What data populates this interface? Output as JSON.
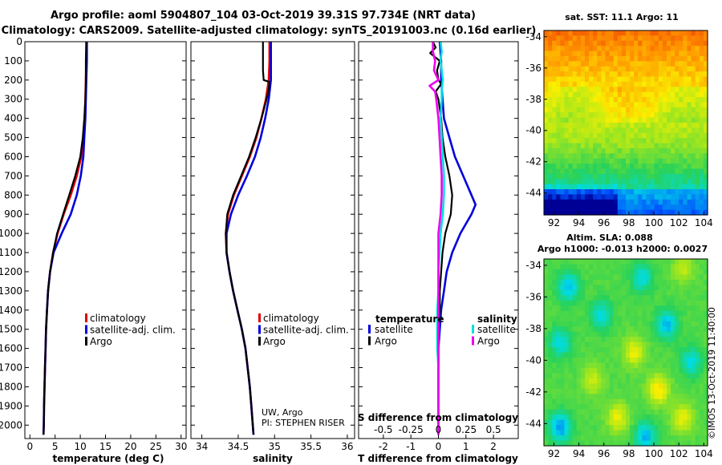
{
  "header": {
    "title_line1": "Argo profile: aoml 5904807_104 03-Oct-2019 39.31S 97.734E (NRT data)",
    "title_line2": "Climatology: CARS2009. Satellite-adjusted climatology: synTS_20191003.nc (0.16d earlier)"
  },
  "colors": {
    "climatology": "#e00000",
    "satellite": "#0000dd",
    "argo": "#000000",
    "satellite_salinity": "#00e0e0",
    "argo_salinity": "#ee00ee"
  },
  "chart_data": [
    {
      "type": "line",
      "id": "temperature",
      "xlabel": "temperature (deg C)",
      "ylabel": "depth",
      "xlim": [
        -1,
        31
      ],
      "ylim": [
        2070,
        0
      ],
      "xticks": [
        0,
        5,
        10,
        15,
        20,
        25,
        30
      ],
      "yticks": [
        0,
        100,
        200,
        300,
        400,
        500,
        600,
        700,
        800,
        900,
        1000,
        1100,
        1200,
        1300,
        1400,
        1500,
        1600,
        1700,
        1800,
        1900,
        2000
      ],
      "legend": [
        "climatology",
        "satellite-adj. clim.",
        "Argo"
      ],
      "series": [
        {
          "name": "climatology",
          "depth": [
            0,
            100,
            200,
            300,
            400,
            500,
            600,
            700,
            800,
            900,
            1000,
            1100,
            1200,
            1300,
            1400,
            1500,
            1600,
            1700,
            1800,
            1900,
            2000,
            2050
          ],
          "values": [
            11.2,
            11.2,
            11.1,
            11.0,
            10.9,
            10.7,
            10.2,
            9.3,
            8.1,
            6.7,
            5.5,
            4.6,
            4.0,
            3.6,
            3.4,
            3.2,
            3.1,
            3.0,
            2.9,
            2.8,
            2.75,
            2.7
          ]
        },
        {
          "name": "satellite-adj. clim.",
          "depth": [
            0,
            100,
            200,
            300,
            400,
            500,
            600,
            700,
            800,
            900,
            1000,
            1100,
            1200,
            1300,
            1400,
            1500,
            1600,
            1700,
            1800,
            1900,
            2000,
            2050
          ],
          "values": [
            11.3,
            11.3,
            11.2,
            11.1,
            11.0,
            10.8,
            10.6,
            10.1,
            9.3,
            8.1,
            6.3,
            4.7,
            4.0,
            3.6,
            3.4,
            3.2,
            3.1,
            3.0,
            2.9,
            2.8,
            2.75,
            2.7
          ]
        },
        {
          "name": "Argo",
          "depth": [
            0,
            100,
            200,
            300,
            400,
            500,
            600,
            700,
            800,
            900,
            1000,
            1100,
            1200,
            1300,
            1400,
            1500,
            1600,
            1700,
            1800,
            1900,
            2000,
            2050
          ],
          "values": [
            11.2,
            11.1,
            11.1,
            11.0,
            10.8,
            10.5,
            10.0,
            9.0,
            7.8,
            6.6,
            5.4,
            4.6,
            4.0,
            3.6,
            3.4,
            3.2,
            3.1,
            3.0,
            2.9,
            2.8,
            2.75,
            2.7
          ]
        }
      ]
    },
    {
      "type": "line",
      "id": "salinity",
      "xlabel": "salinity",
      "ylabel": "depth",
      "xlim": [
        33.85,
        36.1
      ],
      "ylim": [
        2070,
        0
      ],
      "xticks": [
        34,
        34.5,
        35,
        35.5,
        36
      ],
      "xticklabels": [
        "34",
        "34.5",
        "35",
        "35.5",
        "36"
      ],
      "legend": [
        "climatology",
        "satellite-adj. clim.",
        "Argo"
      ],
      "annotation_line1": "UW, Argo",
      "annotation_line2": "PI: STEPHEN RISER",
      "series": [
        {
          "name": "climatology",
          "depth": [
            0,
            100,
            200,
            300,
            400,
            500,
            600,
            700,
            800,
            900,
            1000,
            1100,
            1200,
            1300,
            1400,
            1500,
            1600,
            1700,
            1800,
            1900,
            2000,
            2050
          ],
          "values": [
            34.93,
            34.93,
            34.92,
            34.88,
            34.82,
            34.75,
            34.66,
            34.55,
            34.44,
            34.36,
            34.33,
            34.34,
            34.38,
            34.43,
            34.49,
            34.55,
            34.6,
            34.63,
            34.66,
            34.68,
            34.7,
            34.71
          ]
        },
        {
          "name": "satellite-adj. clim.",
          "depth": [
            0,
            100,
            200,
            300,
            400,
            500,
            600,
            700,
            800,
            900,
            1000,
            1100,
            1200,
            1300,
            1400,
            1500,
            1600,
            1700,
            1800,
            1900,
            2000,
            2050
          ],
          "values": [
            34.95,
            34.95,
            34.95,
            34.92,
            34.87,
            34.81,
            34.73,
            34.62,
            34.5,
            34.4,
            34.34,
            34.34,
            34.38,
            34.43,
            34.49,
            34.55,
            34.6,
            34.63,
            34.66,
            34.68,
            34.7,
            34.71
          ]
        },
        {
          "name": "Argo",
          "depth": [
            0,
            50,
            100,
            150,
            200,
            210,
            250,
            300,
            400,
            500,
            600,
            700,
            800,
            900,
            1000,
            1100,
            1200,
            1300,
            1400,
            1500,
            1600,
            1700,
            1800,
            1900,
            2000,
            2050
          ],
          "values": [
            34.84,
            34.84,
            34.84,
            34.84,
            34.85,
            34.93,
            34.92,
            34.89,
            34.82,
            34.74,
            34.65,
            34.54,
            34.43,
            34.35,
            34.33,
            34.34,
            34.38,
            34.43,
            34.49,
            34.55,
            34.6,
            34.63,
            34.66,
            34.68,
            34.7,
            34.71
          ]
        }
      ]
    },
    {
      "type": "line",
      "id": "difference",
      "xlabel_bottom": "T difference from climatology",
      "xlabel_top": "S difference from climatology",
      "xlim": [
        -2.9,
        2.9
      ],
      "ylim": [
        2070,
        0
      ],
      "xticks": [
        -2,
        -1,
        0,
        1,
        2
      ],
      "xticklabels_top": [
        "-0.5",
        "-0.25",
        "0",
        "0.25",
        "0.5"
      ],
      "legend_left_title": "temperature",
      "legend_left": [
        "satellite",
        "Argo"
      ],
      "legend_right_title": "salinity",
      "legend_right": [
        "satellite",
        "Argo"
      ],
      "series": [
        {
          "name": "T satellite",
          "depth": [
            0,
            100,
            200,
            300,
            400,
            500,
            600,
            700,
            800,
            850,
            900,
            1000,
            1100,
            1200,
            1300,
            1400,
            1500,
            1600,
            1700,
            1800,
            1900,
            2050
          ],
          "values": [
            0.05,
            0.1,
            0.1,
            0.15,
            0.2,
            0.4,
            0.6,
            0.9,
            1.2,
            1.35,
            1.2,
            0.8,
            0.5,
            0.3,
            0.2,
            0.1,
            0.05,
            0.0,
            0.0,
            0.0,
            0.0,
            0.0
          ]
        },
        {
          "name": "T Argo",
          "depth": [
            0,
            30,
            60,
            100,
            150,
            200,
            220,
            260,
            300,
            400,
            500,
            600,
            700,
            800,
            900,
            1000,
            1100,
            1200,
            1300,
            1400,
            1500,
            1600,
            1700,
            1800,
            1900,
            2050
          ],
          "values": [
            -0.2,
            -0.1,
            -0.3,
            0.05,
            -0.05,
            0.0,
            0.1,
            -0.1,
            0.0,
            0.1,
            0.15,
            0.25,
            0.4,
            0.5,
            0.45,
            0.25,
            0.15,
            0.1,
            0.05,
            0.05,
            0.0,
            0.0,
            0.0,
            0.0,
            0.0,
            0.0
          ]
        },
        {
          "name": "S satellite",
          "depth": [
            0,
            50,
            100,
            200,
            250,
            300,
            400,
            500,
            600,
            700,
            800,
            900,
            1000,
            1100,
            1200,
            1300,
            1400,
            1500,
            1600,
            1700,
            1800,
            1900,
            2050
          ],
          "values": [
            0.02,
            0.03,
            0.02,
            0.04,
            0.03,
            0.03,
            0.02,
            0.03,
            0.04,
            0.05,
            0.05,
            0.04,
            0.02,
            0.01,
            0.0,
            0.0,
            -0.01,
            -0.01,
            -0.01,
            0.0,
            0.0,
            0.0,
            0.0
          ]
        },
        {
          "name": "S Argo",
          "depth": [
            0,
            50,
            100,
            150,
            200,
            230,
            260,
            300,
            400,
            500,
            600,
            700,
            800,
            900,
            1000,
            1100,
            1200,
            1300,
            1400,
            1500,
            1600,
            1700,
            1800,
            1900,
            2050
          ],
          "values": [
            -0.05,
            -0.05,
            -0.03,
            -0.04,
            0.0,
            -0.08,
            -0.03,
            -0.02,
            0.0,
            0.01,
            0.02,
            0.03,
            0.03,
            0.02,
            0.0,
            0.0,
            0.0,
            0.0,
            0.0,
            0.0,
            0.0,
            0.0,
            0.0,
            0.0,
            0.0
          ]
        }
      ]
    },
    {
      "type": "heatmap",
      "id": "sst_map",
      "title": "sat. SST: 11.1  Argo: 11",
      "xlim": [
        91.2,
        104.3
      ],
      "ylim": [
        -45.4,
        -33.6
      ],
      "xticks": [
        92,
        94,
        96,
        98,
        100,
        102,
        104
      ],
      "yticks": [
        -34,
        -36,
        -38,
        -40,
        -42,
        -44
      ],
      "argo_position": [
        97.734,
        -39.31
      ]
    },
    {
      "type": "heatmap",
      "id": "sla_map",
      "title_line1": "Altim. SLA: 0.088",
      "title_line2": "Argo h1000: -0.013 h2000: 0.0027",
      "xlim": [
        91.2,
        104.3
      ],
      "ylim": [
        -45.4,
        -33.6
      ],
      "xticks": [
        92,
        94,
        96,
        98,
        100,
        102,
        104
      ],
      "yticks": [
        -34,
        -36,
        -38,
        -40,
        -42,
        -44
      ],
      "argo_position": [
        97.734,
        -39.31
      ]
    }
  ],
  "footer": {
    "credit": "©IMOS 13-Oct-2019 11:40:00"
  }
}
